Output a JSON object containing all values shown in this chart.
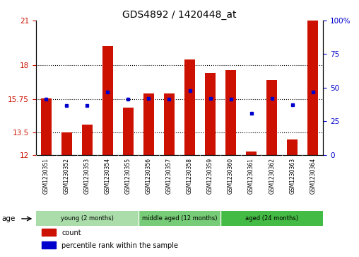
{
  "title": "GDS4892 / 1420448_at",
  "samples": [
    "GSM1230351",
    "GSM1230352",
    "GSM1230353",
    "GSM1230354",
    "GSM1230355",
    "GSM1230356",
    "GSM1230357",
    "GSM1230358",
    "GSM1230359",
    "GSM1230360",
    "GSM1230361",
    "GSM1230362",
    "GSM1230363",
    "GSM1230364"
  ],
  "bar_heights": [
    15.8,
    13.5,
    14.0,
    19.3,
    15.15,
    16.1,
    16.1,
    18.4,
    17.5,
    17.7,
    12.2,
    17.0,
    13.0,
    21.0
  ],
  "percentile_values": [
    15.75,
    15.3,
    15.3,
    16.2,
    15.75,
    15.8,
    15.75,
    16.3,
    15.8,
    15.75,
    14.8,
    15.8,
    15.35,
    16.2
  ],
  "ymin": 12,
  "ymax": 21,
  "yticks": [
    12,
    13.5,
    15.75,
    18,
    21
  ],
  "ytick_labels": [
    "12",
    "13.5",
    "15.75",
    "18",
    "21"
  ],
  "right_yticks": [
    0,
    25,
    50,
    75,
    100
  ],
  "right_ytick_labels": [
    "0",
    "25",
    "50",
    "75",
    "100%"
  ],
  "bar_color": "#CC1100",
  "percentile_color": "#0000CC",
  "grid_color": "#000000",
  "background_color": "#ffffff",
  "groups": [
    {
      "label": "young (2 months)",
      "start": 0,
      "end": 5,
      "color": "#AADDAA"
    },
    {
      "label": "middle aged (12 months)",
      "start": 5,
      "end": 9,
      "color": "#77CC77"
    },
    {
      "label": "aged (24 months)",
      "start": 9,
      "end": 14,
      "color": "#44BB44"
    }
  ],
  "age_label": "age",
  "legend_count_label": "count",
  "legend_pct_label": "percentile rank within the sample",
  "tick_area_color": "#C8C8C8",
  "xlim_left": -0.5,
  "xlim_right": 13.5
}
